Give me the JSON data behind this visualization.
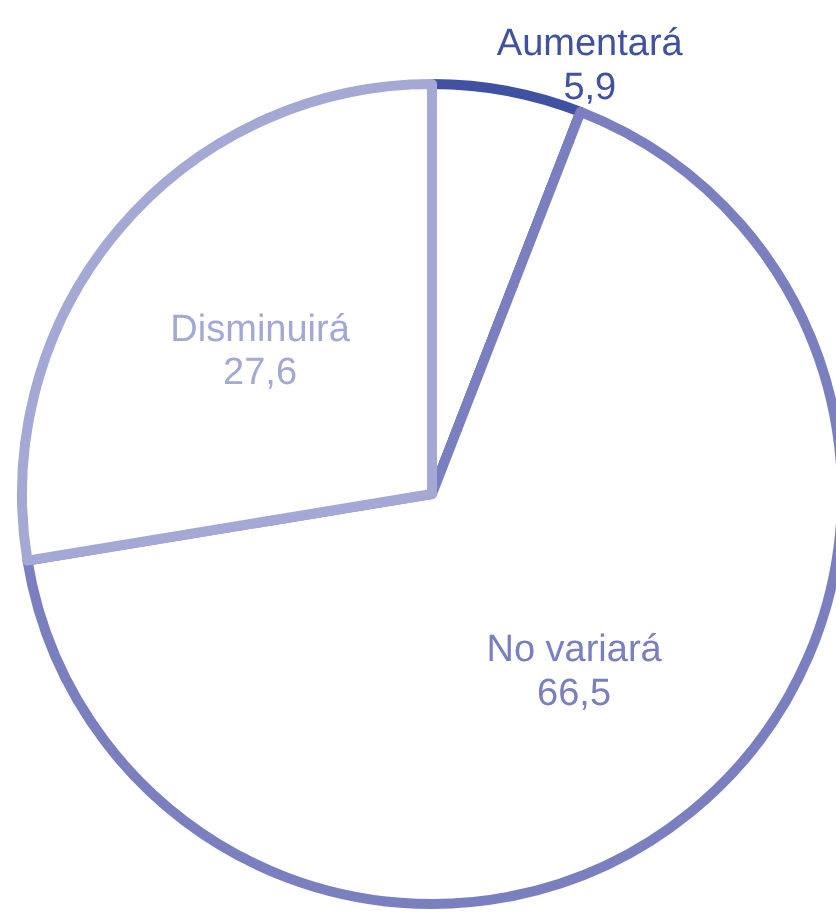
{
  "chart_data": {
    "type": "pie",
    "categories": [
      "Aumentará",
      "No variará",
      "Disminuirá"
    ],
    "values": [
      5.9,
      66.5,
      27.6
    ],
    "colors": [
      "#3f51a0",
      "#7a80bf",
      "#a3a8d4"
    ],
    "value_labels": [
      "5,9",
      "66,5",
      "27,6"
    ]
  }
}
